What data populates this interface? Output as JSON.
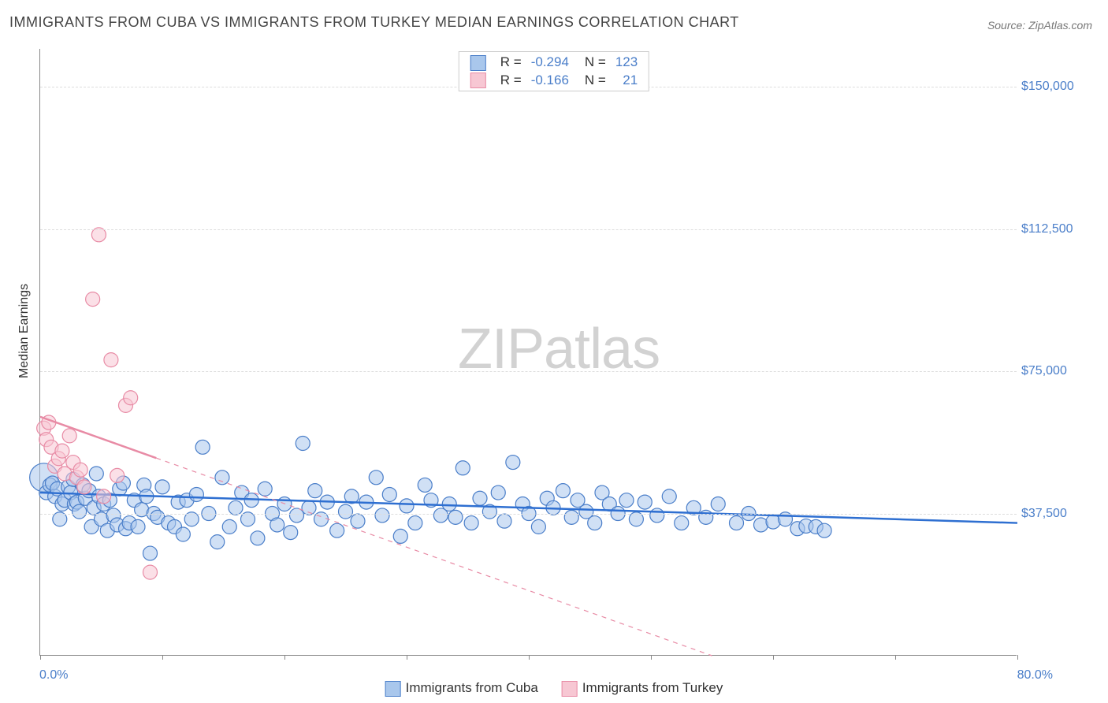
{
  "title": "IMMIGRANTS FROM CUBA VS IMMIGRANTS FROM TURKEY MEDIAN EARNINGS CORRELATION CHART",
  "source_label": "Source: ZipAtlas.com",
  "watermark_zip": "ZIP",
  "watermark_atlas": "atlas",
  "y_axis_label": "Median Earnings",
  "chart": {
    "type": "scatter",
    "xlim": [
      0,
      80
    ],
    "ylim": [
      0,
      160000
    ],
    "x_min_label": "0.0%",
    "x_max_label": "80.0%",
    "x_tick_step": 10,
    "y_ticks": [
      37500,
      75000,
      112500,
      150000
    ],
    "y_tick_labels": [
      "$37,500",
      "$75,000",
      "$112,500",
      "$150,000"
    ],
    "grid_color": "#dddddd",
    "background_color": "#ffffff",
    "axis_color": "#888888",
    "tick_label_color": "#4a7ec9",
    "marker_radius": 9,
    "marker_opacity": 0.55,
    "trend_line_width": 2.5,
    "series": [
      {
        "name": "Immigrants from Cuba",
        "color_fill": "#a9c7ec",
        "color_stroke": "#4a7ec9",
        "trend_color": "#2e6fd1",
        "trend_style": "solid",
        "trend": {
          "x1": 0,
          "y1": 43000,
          "x2": 80,
          "y2": 35000
        },
        "R": "-0.294",
        "N": "123",
        "points": [
          {
            "x": 0.3,
            "y": 47000,
            "r": 18
          },
          {
            "x": 0.5,
            "y": 43000
          },
          {
            "x": 0.8,
            "y": 45000
          },
          {
            "x": 1.0,
            "y": 45500
          },
          {
            "x": 1.2,
            "y": 42000
          },
          {
            "x": 1.4,
            "y": 44000
          },
          {
            "x": 1.6,
            "y": 36000
          },
          {
            "x": 1.8,
            "y": 40000
          },
          {
            "x": 2.0,
            "y": 41000
          },
          {
            "x": 2.3,
            "y": 44500
          },
          {
            "x": 2.5,
            "y": 43000
          },
          {
            "x": 2.7,
            "y": 46500
          },
          {
            "x": 2.8,
            "y": 40000
          },
          {
            "x": 3.0,
            "y": 40500
          },
          {
            "x": 3.2,
            "y": 38000
          },
          {
            "x": 3.5,
            "y": 45000
          },
          {
            "x": 3.7,
            "y": 41500
          },
          {
            "x": 4.0,
            "y": 43500
          },
          {
            "x": 4.2,
            "y": 34000
          },
          {
            "x": 4.4,
            "y": 39000
          },
          {
            "x": 4.6,
            "y": 48000
          },
          {
            "x": 4.8,
            "y": 42000
          },
          {
            "x": 5.0,
            "y": 36000
          },
          {
            "x": 5.2,
            "y": 40000
          },
          {
            "x": 5.5,
            "y": 33000
          },
          {
            "x": 5.7,
            "y": 41000
          },
          {
            "x": 6.0,
            "y": 37000
          },
          {
            "x": 6.3,
            "y": 34500
          },
          {
            "x": 6.5,
            "y": 44000
          },
          {
            "x": 6.8,
            "y": 45500
          },
          {
            "x": 7.0,
            "y": 33500
          },
          {
            "x": 7.3,
            "y": 35000
          },
          {
            "x": 7.7,
            "y": 41000
          },
          {
            "x": 8.0,
            "y": 34000
          },
          {
            "x": 8.3,
            "y": 38500
          },
          {
            "x": 8.5,
            "y": 45000
          },
          {
            "x": 8.7,
            "y": 42000
          },
          {
            "x": 9.0,
            "y": 27000
          },
          {
            "x": 9.3,
            "y": 37500
          },
          {
            "x": 9.6,
            "y": 36500
          },
          {
            "x": 10.0,
            "y": 44500
          },
          {
            "x": 10.5,
            "y": 35000
          },
          {
            "x": 11.0,
            "y": 34000
          },
          {
            "x": 11.3,
            "y": 40500
          },
          {
            "x": 11.7,
            "y": 32000
          },
          {
            "x": 12.0,
            "y": 41000
          },
          {
            "x": 12.4,
            "y": 36000
          },
          {
            "x": 12.8,
            "y": 42500
          },
          {
            "x": 13.3,
            "y": 55000
          },
          {
            "x": 13.8,
            "y": 37500
          },
          {
            "x": 14.5,
            "y": 30000
          },
          {
            "x": 14.9,
            "y": 47000
          },
          {
            "x": 15.5,
            "y": 34000
          },
          {
            "x": 16.0,
            "y": 39000
          },
          {
            "x": 16.5,
            "y": 43000
          },
          {
            "x": 17.0,
            "y": 36000
          },
          {
            "x": 17.3,
            "y": 41000
          },
          {
            "x": 17.8,
            "y": 31000
          },
          {
            "x": 18.4,
            "y": 44000
          },
          {
            "x": 19.0,
            "y": 37500
          },
          {
            "x": 19.4,
            "y": 34500
          },
          {
            "x": 20.0,
            "y": 40000
          },
          {
            "x": 20.5,
            "y": 32500
          },
          {
            "x": 21.0,
            "y": 37000
          },
          {
            "x": 21.5,
            "y": 56000
          },
          {
            "x": 22.0,
            "y": 39000
          },
          {
            "x": 22.5,
            "y": 43500
          },
          {
            "x": 23.0,
            "y": 36000
          },
          {
            "x": 23.5,
            "y": 40500
          },
          {
            "x": 24.3,
            "y": 33000
          },
          {
            "x": 25.0,
            "y": 38000
          },
          {
            "x": 25.5,
            "y": 42000
          },
          {
            "x": 26.0,
            "y": 35500
          },
          {
            "x": 26.7,
            "y": 40500
          },
          {
            "x": 27.5,
            "y": 47000
          },
          {
            "x": 28.0,
            "y": 37000
          },
          {
            "x": 28.6,
            "y": 42500
          },
          {
            "x": 29.5,
            "y": 31500
          },
          {
            "x": 30.0,
            "y": 39500
          },
          {
            "x": 30.7,
            "y": 35000
          },
          {
            "x": 31.5,
            "y": 45000
          },
          {
            "x": 32.0,
            "y": 41000
          },
          {
            "x": 32.8,
            "y": 37000
          },
          {
            "x": 33.5,
            "y": 40000
          },
          {
            "x": 34.0,
            "y": 36500
          },
          {
            "x": 34.6,
            "y": 49500
          },
          {
            "x": 35.3,
            "y": 35000
          },
          {
            "x": 36.0,
            "y": 41500
          },
          {
            "x": 36.8,
            "y": 38000
          },
          {
            "x": 37.5,
            "y": 43000
          },
          {
            "x": 38.0,
            "y": 35500
          },
          {
            "x": 38.7,
            "y": 51000
          },
          {
            "x": 39.5,
            "y": 40000
          },
          {
            "x": 40.0,
            "y": 37500
          },
          {
            "x": 40.8,
            "y": 34000
          },
          {
            "x": 41.5,
            "y": 41500
          },
          {
            "x": 42.0,
            "y": 39000
          },
          {
            "x": 42.8,
            "y": 43500
          },
          {
            "x": 43.5,
            "y": 36500
          },
          {
            "x": 44.0,
            "y": 41000
          },
          {
            "x": 44.7,
            "y": 38000
          },
          {
            "x": 45.4,
            "y": 35000
          },
          {
            "x": 46.0,
            "y": 43000
          },
          {
            "x": 46.6,
            "y": 40000
          },
          {
            "x": 47.3,
            "y": 37500
          },
          {
            "x": 48.0,
            "y": 41000
          },
          {
            "x": 48.8,
            "y": 36000
          },
          {
            "x": 49.5,
            "y": 40500
          },
          {
            "x": 50.5,
            "y": 37000
          },
          {
            "x": 51.5,
            "y": 42000
          },
          {
            "x": 52.5,
            "y": 35000
          },
          {
            "x": 53.5,
            "y": 39000
          },
          {
            "x": 54.5,
            "y": 36500
          },
          {
            "x": 55.5,
            "y": 40000
          },
          {
            "x": 57.0,
            "y": 35000
          },
          {
            "x": 58.0,
            "y": 37500
          },
          {
            "x": 59.0,
            "y": 34500
          },
          {
            "x": 60.0,
            "y": 35300
          },
          {
            "x": 61.0,
            "y": 36000
          },
          {
            "x": 62.0,
            "y": 33500
          },
          {
            "x": 62.7,
            "y": 34200
          },
          {
            "x": 63.5,
            "y": 34000
          },
          {
            "x": 64.2,
            "y": 33000
          }
        ]
      },
      {
        "name": "Immigrants from Turkey",
        "color_fill": "#f7c7d3",
        "color_stroke": "#e88ba5",
        "trend_color": "#e88ba5",
        "trend_style": "solid_then_dashed",
        "trend": {
          "x1": 0,
          "y1": 63000,
          "x2": 55,
          "y2": 0
        },
        "trend_split_x": 9.5,
        "R": "-0.166",
        "N": "21",
        "points": [
          {
            "x": 0.3,
            "y": 60000
          },
          {
            "x": 0.5,
            "y": 57000
          },
          {
            "x": 0.7,
            "y": 61500
          },
          {
            "x": 0.9,
            "y": 55000
          },
          {
            "x": 1.2,
            "y": 50000
          },
          {
            "x": 1.5,
            "y": 52000
          },
          {
            "x": 1.8,
            "y": 54000
          },
          {
            "x": 2.0,
            "y": 48000
          },
          {
            "x": 2.4,
            "y": 58000
          },
          {
            "x": 2.7,
            "y": 51000
          },
          {
            "x": 3.0,
            "y": 47000
          },
          {
            "x": 3.3,
            "y": 49000
          },
          {
            "x": 3.6,
            "y": 44500
          },
          {
            "x": 4.3,
            "y": 94000
          },
          {
            "x": 4.8,
            "y": 111000
          },
          {
            "x": 5.2,
            "y": 42000
          },
          {
            "x": 5.8,
            "y": 78000
          },
          {
            "x": 6.3,
            "y": 47500
          },
          {
            "x": 7.0,
            "y": 66000
          },
          {
            "x": 7.4,
            "y": 68000
          },
          {
            "x": 9.0,
            "y": 22000
          }
        ]
      }
    ]
  },
  "legend_top_rows": [
    {
      "swatch_fill": "#a9c7ec",
      "swatch_stroke": "#4a7ec9",
      "R_label": "R =",
      "R_val": "-0.294",
      "N_label": "N =",
      "N_val": "123"
    },
    {
      "swatch_fill": "#f7c7d3",
      "swatch_stroke": "#e88ba5",
      "R_label": "R =",
      "R_val": "-0.166",
      "N_label": "N =",
      "N_val": "21"
    }
  ],
  "legend_bottom": [
    {
      "swatch_fill": "#a9c7ec",
      "swatch_stroke": "#4a7ec9",
      "label": "Immigrants from Cuba"
    },
    {
      "swatch_fill": "#f7c7d3",
      "swatch_stroke": "#e88ba5",
      "label": "Immigrants from Turkey"
    }
  ]
}
